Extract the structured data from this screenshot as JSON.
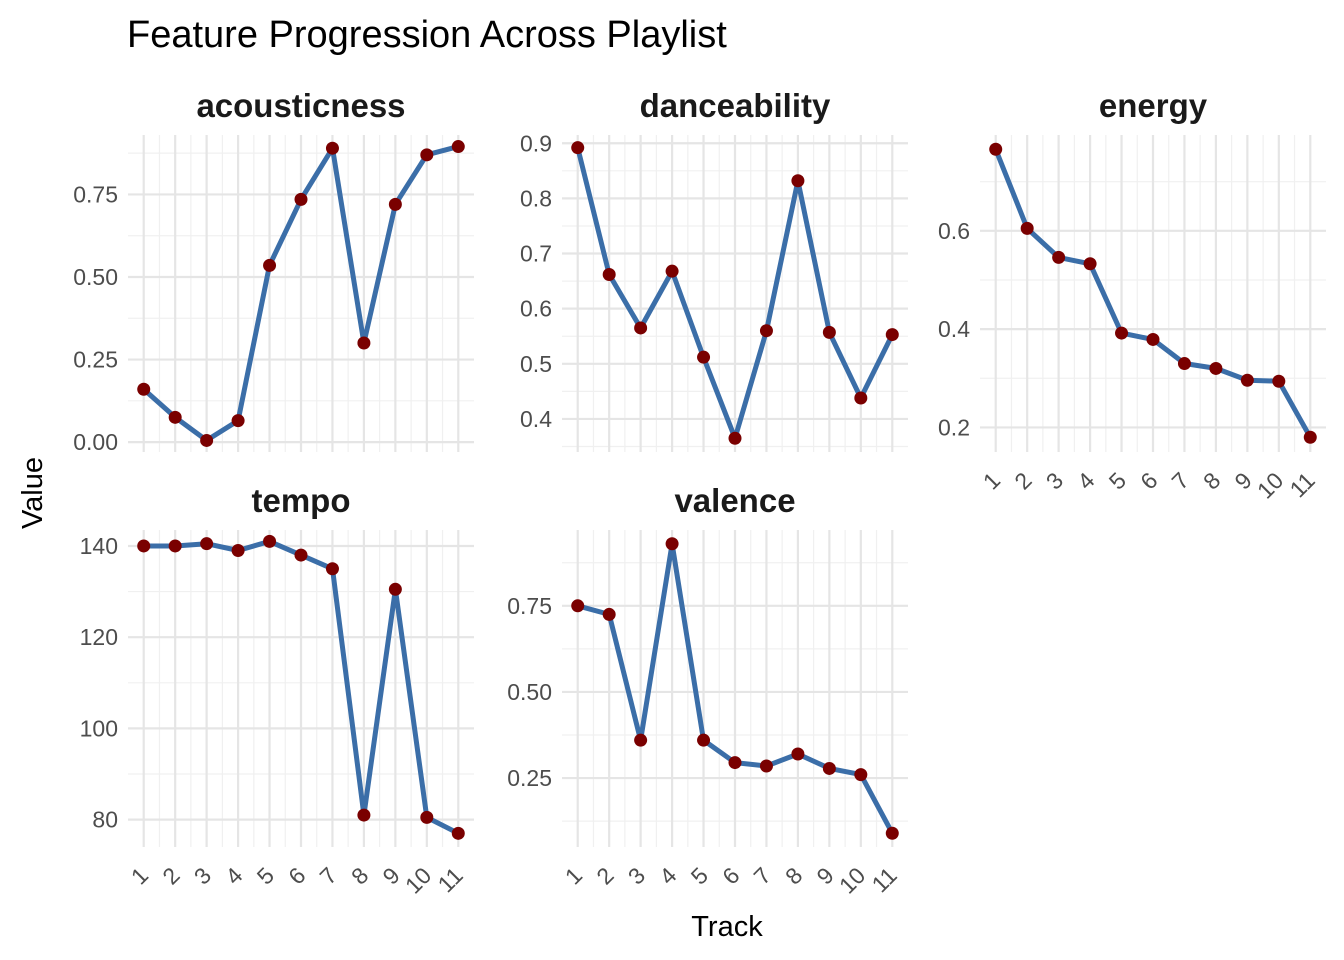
{
  "chart_data": {
    "type": "line",
    "title": "Feature Progression Across Playlist",
    "xlabel": "Track",
    "ylabel": "Value",
    "x": [
      1,
      2,
      3,
      4,
      5,
      6,
      7,
      8,
      9,
      10,
      11
    ],
    "x_tick_labels": [
      "1",
      "2",
      "3",
      "4",
      "5",
      "6",
      "7",
      "8",
      "9",
      "10",
      "11"
    ],
    "facets": [
      {
        "name": "acousticness",
        "ylim": [
          -0.03,
          0.93
        ],
        "yticks": [
          0.0,
          0.25,
          0.5,
          0.75
        ],
        "ytick_labels": [
          "0.00",
          "0.25",
          "0.50",
          "0.75"
        ],
        "values": [
          0.16,
          0.075,
          0.005,
          0.065,
          0.535,
          0.735,
          0.89,
          0.3,
          0.72,
          0.87,
          0.895
        ]
      },
      {
        "name": "danceability",
        "ylim": [
          0.34,
          0.915
        ],
        "yticks": [
          0.4,
          0.5,
          0.6,
          0.7,
          0.8,
          0.9
        ],
        "ytick_labels": [
          "0.4",
          "0.5",
          "0.6",
          "0.7",
          "0.8",
          "0.9"
        ],
        "values": [
          0.892,
          0.662,
          0.565,
          0.668,
          0.512,
          0.365,
          0.56,
          0.832,
          0.557,
          0.438,
          0.553
        ]
      },
      {
        "name": "energy",
        "ylim": [
          0.15,
          0.795
        ],
        "yticks": [
          0.2,
          0.4,
          0.6
        ],
        "ytick_labels": [
          "0.2",
          "0.4",
          "0.6"
        ],
        "values": [
          0.766,
          0.605,
          0.546,
          0.533,
          0.392,
          0.379,
          0.33,
          0.32,
          0.296,
          0.294,
          0.18
        ]
      },
      {
        "name": "tempo",
        "ylim": [
          74,
          143.5
        ],
        "yticks": [
          80,
          100,
          120,
          140
        ],
        "ytick_labels": [
          "80",
          "100",
          "120",
          "140"
        ],
        "values": [
          140.0,
          140.0,
          140.5,
          139.0,
          141.0,
          138.0,
          135.0,
          81.0,
          130.5,
          80.5,
          77.0
        ]
      },
      {
        "name": "valence",
        "ylim": [
          0.05,
          0.97
        ],
        "yticks": [
          0.25,
          0.5,
          0.75
        ],
        "ytick_labels": [
          "0.25",
          "0.50",
          "0.75"
        ],
        "values": [
          0.75,
          0.725,
          0.36,
          0.93,
          0.36,
          0.295,
          0.285,
          0.32,
          0.278,
          0.26,
          0.09
        ]
      }
    ],
    "grid": true,
    "line_color": "#3b6ea8",
    "point_color": "#7a0000",
    "grid_major_color": "#e5e5e5",
    "grid_minor_color": "#f0f0f0"
  }
}
